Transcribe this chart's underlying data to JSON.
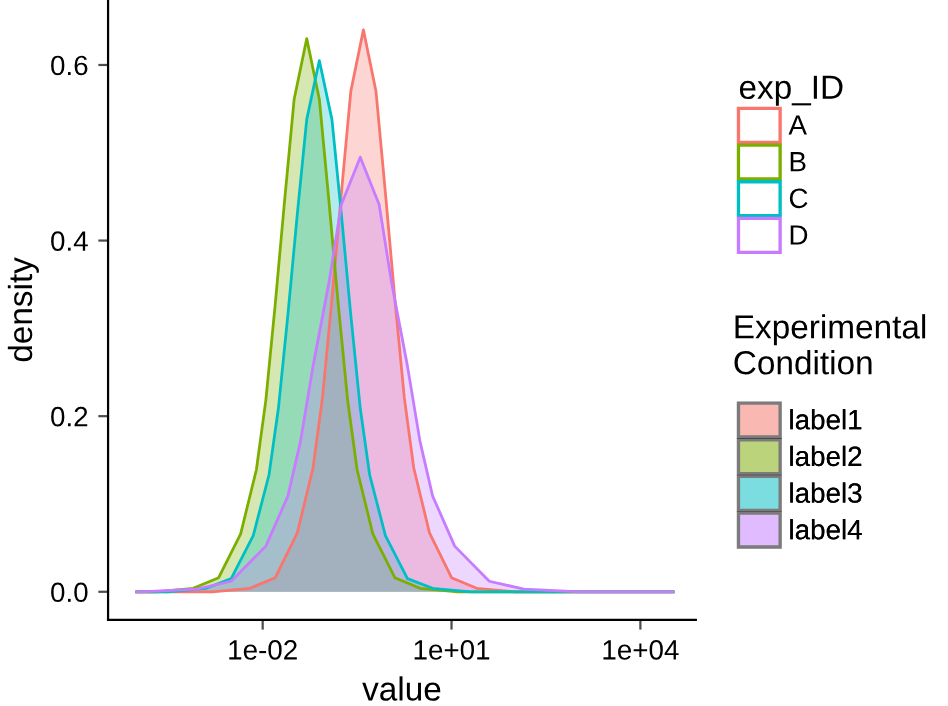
{
  "chart_data": {
    "type": "area",
    "xlabel": "value",
    "ylabel": "density",
    "legend_title": "exp_ID",
    "annotations": [
      "Experimental Condition",
      "label1",
      "label2",
      "label3",
      "label4"
    ],
    "log": "x",
    "xlim": [
      3.5e-05,
      76000
    ],
    "ylim": [
      -0.032,
      0.674
    ],
    "xticks": [
      {
        "value": 0.01,
        "label": "1e-02"
      },
      {
        "value": 10,
        "label": "1e+01"
      },
      {
        "value": 10000,
        "label": "1e+04"
      }
    ],
    "yticks": [
      {
        "value": 0,
        "label": "0.0"
      },
      {
        "value": 0.2,
        "label": "0.2"
      },
      {
        "value": 0.4,
        "label": "0.4"
      },
      {
        "value": 0.6,
        "label": "0.6"
      }
    ],
    "grid": false,
    "legend": "right",
    "series": [
      {
        "name": "A",
        "color": "#f8766d",
        "x": [
          0.0001,
          0.001585,
          0.00631,
          0.01585,
          0.03548,
          0.0631,
          0.08913,
          0.1259,
          0.1778,
          0.2512,
          0.3981,
          0.631,
          0.8913,
          1.259,
          1.778,
          2.512,
          4.467,
          10,
          25.12,
          100,
          33000
        ],
        "values": [
          0,
          0,
          0.004,
          0.016,
          0.067,
          0.141,
          0.221,
          0.333,
          0.454,
          0.57,
          0.64,
          0.57,
          0.454,
          0.333,
          0.221,
          0.141,
          0.067,
          0.016,
          0.004,
          0,
          0
        ]
      },
      {
        "name": "B",
        "color": "#7cae00",
        "x": [
          0.0001,
          0.0002,
          0.00079,
          0.002,
          0.00447,
          0.00794,
          0.01122,
          0.01585,
          0.02239,
          0.03162,
          0.05012,
          0.07943,
          0.1122,
          0.1585,
          0.2239,
          0.3162,
          0.5623,
          1.259,
          3.162,
          12.59,
          33000
        ],
        "values": [
          0,
          0,
          0.004,
          0.016,
          0.066,
          0.139,
          0.218,
          0.328,
          0.447,
          0.561,
          0.63,
          0.561,
          0.447,
          0.328,
          0.218,
          0.139,
          0.066,
          0.016,
          0.004,
          0,
          0
        ]
      },
      {
        "name": "C",
        "color": "#00bfc4",
        "x": [
          0.0001,
          0.000316,
          0.00126,
          0.00316,
          0.00708,
          0.01259,
          0.01778,
          0.02512,
          0.03548,
          0.05012,
          0.07943,
          0.1259,
          0.1778,
          0.2512,
          0.3548,
          0.5012,
          0.8913,
          1.995,
          5.012,
          19.95,
          33000
        ],
        "values": [
          0,
          0,
          0.004,
          0.015,
          0.064,
          0.133,
          0.209,
          0.315,
          0.43,
          0.538,
          0.605,
          0.538,
          0.43,
          0.315,
          0.209,
          0.133,
          0.064,
          0.015,
          0.004,
          0,
          0
        ]
      },
      {
        "name": "D",
        "color": "#c77cff",
        "x": [
          0.0001,
          0.0001122,
          0.0008913,
          0.003162,
          0.01122,
          0.02512,
          0.03981,
          0.0631,
          0.1122,
          0.1778,
          0.3548,
          0.7079,
          1.122,
          1.995,
          3.162,
          5.012,
          11.22,
          39.81,
          141.3,
          1122,
          33000
        ],
        "values": [
          0,
          0,
          0.003,
          0.012,
          0.052,
          0.109,
          0.171,
          0.257,
          0.351,
          0.441,
          0.495,
          0.441,
          0.351,
          0.257,
          0.171,
          0.109,
          0.052,
          0.012,
          0.003,
          0,
          0
        ]
      }
    ]
  }
}
